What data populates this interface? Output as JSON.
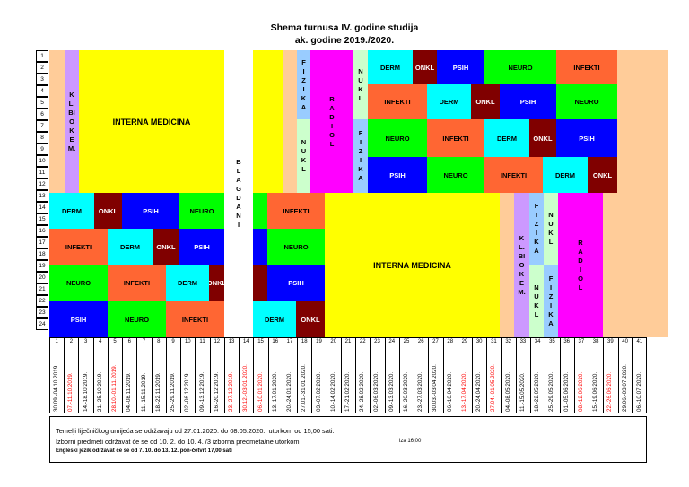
{
  "title": "Shema turnusa IV. godine studija",
  "subtitle": "ak. godine 2019./2020.",
  "colors": {
    "interna": "#ffff00",
    "derm": "#00ffff",
    "onkl": "#800000",
    "psih": "#0000ff",
    "neuro": "#00ff00",
    "infekti": "#ff6633",
    "klbiokem": "#cc99ff",
    "fizika": "#99ccff",
    "nukl": "#ccffcc",
    "radiol": "#ff00ff",
    "peach": "#ffcc99"
  },
  "rows": [
    "1",
    "2",
    "3",
    "4",
    "5",
    "6",
    "7",
    "8",
    "9",
    "10",
    "11",
    "12",
    "13",
    "14",
    "15",
    "16",
    "17",
    "18",
    "19",
    "20",
    "21",
    "22",
    "23",
    "24"
  ],
  "labels": {
    "interna": "INTERNA MEDICINA",
    "derm": "DERM",
    "onkl": "ONKL",
    "psih": "PSIH",
    "neuro": "NEURO",
    "infekti": "INFEKTI",
    "klbiokem": "K\nL.\nBI\nO\nK\nE\nM.",
    "blagdani": "B\nL\nA\nG\nD\nA\nN\nI",
    "fizika": "F\nI\nZ\nI\nK\nA",
    "nukl": "N\nU\nK\nL",
    "radiol": "R\nA\nD\nI\nO\nL"
  },
  "weeks": [
    {
      "n": "1",
      "d": "30.09.-04.10.2019.",
      "red": false
    },
    {
      "n": "2",
      "d": "07.-11.10.2019.",
      "red": true
    },
    {
      "n": "3",
      "d": "14.-18.10.2019.",
      "red": false
    },
    {
      "n": "4",
      "d": "21.-25.10.2019.",
      "red": false
    },
    {
      "n": "5",
      "d": "28.10.-01.11.2019.",
      "red": true
    },
    {
      "n": "6",
      "d": "04.-08.11.2019.",
      "red": false
    },
    {
      "n": "7",
      "d": "11.-15.11.2019.",
      "red": false
    },
    {
      "n": "8",
      "d": "18.-22.11.2019.",
      "red": false
    },
    {
      "n": "9",
      "d": "25.-29.11.2019.",
      "red": false
    },
    {
      "n": "10",
      "d": "02.-06.12.2019.",
      "red": false
    },
    {
      "n": "11",
      "d": "09.-13.12.2019.",
      "red": false
    },
    {
      "n": "12",
      "d": "16.-20.12.2019.",
      "red": false
    },
    {
      "n": "13",
      "d": "23.-27.12.2019.",
      "red": true
    },
    {
      "n": "14",
      "d": "30.12.-03.01.2020.",
      "red": true
    },
    {
      "n": "15",
      "d": "06.-10.01.2020.",
      "red": true
    },
    {
      "n": "16",
      "d": "13.-17.01.2020.",
      "red": false
    },
    {
      "n": "17",
      "d": "20.-24.01.2020.",
      "red": false
    },
    {
      "n": "18",
      "d": "27.01.-31.01.2020.",
      "red": false
    },
    {
      "n": "19",
      "d": "03.-07.02.2020.",
      "red": false
    },
    {
      "n": "20",
      "d": "10.-14.02.2020.",
      "red": false
    },
    {
      "n": "21",
      "d": "17.-21.02.2020.",
      "red": false
    },
    {
      "n": "22",
      "d": "24.-28.02.2020.",
      "red": false
    },
    {
      "n": "23",
      "d": "02.-06.03.2020.",
      "red": false
    },
    {
      "n": "24",
      "d": "09.-13.03.2020.",
      "red": false
    },
    {
      "n": "25",
      "d": "16.-20.03.2020.",
      "red": false
    },
    {
      "n": "26",
      "d": "23.-27.03.2020.",
      "red": false
    },
    {
      "n": "27",
      "d": "30.03.-03.04.2020.",
      "red": false
    },
    {
      "n": "28",
      "d": "06.-10.04.2020.",
      "red": false
    },
    {
      "n": "29",
      "d": "13.-17.04.2020.",
      "red": true
    },
    {
      "n": "30",
      "d": "20.-24.04.2020.",
      "red": false
    },
    {
      "n": "31",
      "d": "27.04.-01.05.2020.",
      "red": true
    },
    {
      "n": "32",
      "d": "04.-08.05.2020.",
      "red": false
    },
    {
      "n": "33",
      "d": "11.-15.05.2020.",
      "red": false
    },
    {
      "n": "34",
      "d": "18.-22.05.2020.",
      "red": false
    },
    {
      "n": "35",
      "d": "25.-29.05.2020.",
      "red": false
    },
    {
      "n": "36",
      "d": "01.-05.06.2020.",
      "red": false
    },
    {
      "n": "37",
      "d": "08.-12.06.2020.",
      "red": true
    },
    {
      "n": "38",
      "d": "15.-19.06.2020.",
      "red": false
    },
    {
      "n": "39",
      "d": "22.-26.06.2020.",
      "red": true
    },
    {
      "n": "40",
      "d": "29.06.-03.07.2020.",
      "red": false
    },
    {
      "n": "41",
      "d": "06.-10.07.2020.",
      "red": false
    }
  ],
  "notes": {
    "line1": "Temelji liječničkog umijeća se održavaju od 27.01.2020. do 08.05.2020., utorkom od 15,00 sati.",
    "line2": "Izborni predmeti održavat će se od 10. 2. do 10. 4. /3 izborna predmeta/ne utorkom",
    "line2b": "iza 16,00",
    "line3": "Engleski jezik održavat će se od 7. 10. do 13. 12. pon-četvrt 17,00 sati"
  }
}
